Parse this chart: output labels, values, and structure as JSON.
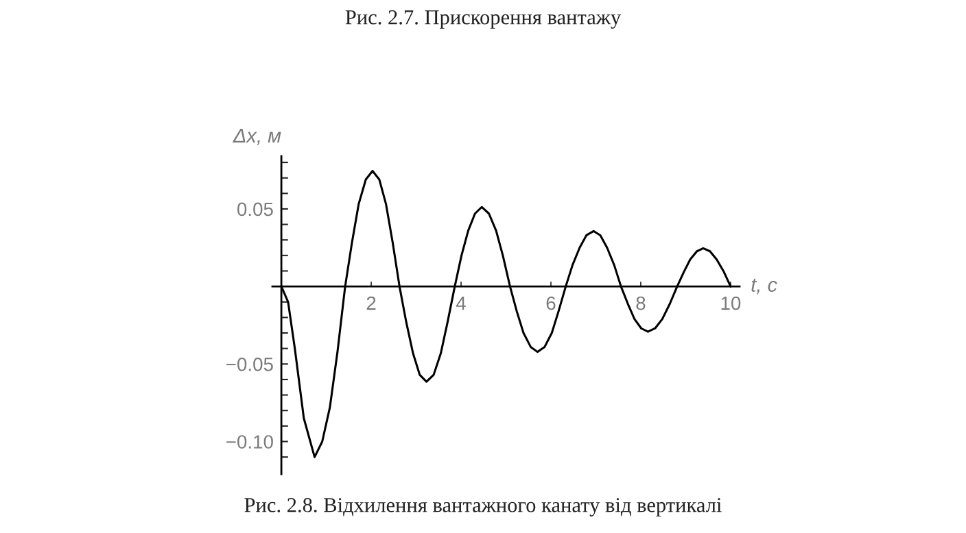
{
  "chart_data": {
    "type": "line",
    "title": "Рис. 2.8. Відхилення вантажного канату від вертикалі",
    "annotations": [
      "Рис. 2.7. Прискорення вантажу"
    ],
    "xlabel": "t, c",
    "ylabel": "Δx, м",
    "xlim": [
      -0.2,
      10.2
    ],
    "ylim": [
      -0.121,
      0.084
    ],
    "xticks": [
      2,
      4,
      6,
      8,
      10
    ],
    "yticks": [
      {
        "value": 0.08,
        "label": null
      },
      {
        "value": 0.07,
        "label": null
      },
      {
        "value": 0.06,
        "label": null
      },
      0.05,
      {
        "value": 0.04,
        "label": null
      },
      {
        "value": 0.03,
        "label": null
      },
      {
        "value": 0.02,
        "label": null
      },
      {
        "value": 0.01,
        "label": null
      },
      {
        "value": -0.01,
        "label": null
      },
      {
        "value": -0.02,
        "label": null
      },
      {
        "value": -0.03,
        "label": null
      },
      {
        "value": -0.04,
        "label": null
      },
      {
        "value": -0.05,
        "label": "−0.05"
      },
      {
        "value": -0.06,
        "label": null
      },
      {
        "value": -0.07,
        "label": null
      },
      {
        "value": -0.08,
        "label": null
      },
      {
        "value": -0.09,
        "label": null
      },
      {
        "value": -0.1,
        "label": "−0.10"
      },
      {
        "value": -0.11,
        "label": null
      }
    ],
    "series": [
      {
        "color": "#000000",
        "x": [
          0,
          0.15,
          0.3,
          0.5,
          0.74,
          0.91,
          1.08,
          1.25,
          1.42,
          1.57,
          1.72,
          1.88,
          2.03,
          2.18,
          2.33,
          2.48,
          2.63,
          2.78,
          2.93,
          3.08,
          3.23,
          3.39,
          3.55,
          3.7,
          3.86,
          4.01,
          4.16,
          4.31,
          4.46,
          4.62,
          4.78,
          4.93,
          5.09,
          5.24,
          5.39,
          5.55,
          5.7,
          5.86,
          6.02,
          6.17,
          6.33,
          6.48,
          6.64,
          6.79,
          6.95,
          7.1,
          7.25,
          7.41,
          7.56,
          7.71,
          7.86,
          8.01,
          8.16,
          8.32,
          8.48,
          8.65,
          8.81,
          8.96,
          9.1,
          9.25,
          9.39,
          9.54,
          9.69,
          9.85,
          10
        ],
        "values": [
          0,
          -0.01,
          -0.04,
          -0.085,
          -0.11,
          -0.1,
          -0.078,
          -0.042,
          0,
          0.028,
          0.053,
          0.069,
          0.0745,
          0.069,
          0.053,
          0.028,
          0,
          -0.023,
          -0.043,
          -0.057,
          -0.0614,
          -0.057,
          -0.043,
          -0.023,
          0,
          0.02,
          0.036,
          0.047,
          0.0512,
          0.047,
          0.036,
          0.02,
          0,
          -0.016,
          -0.03,
          -0.039,
          -0.0422,
          -0.039,
          -0.03,
          -0.016,
          0,
          0.0137,
          0.025,
          0.033,
          0.0357,
          0.033,
          0.025,
          0.0137,
          0,
          -0.011,
          -0.021,
          -0.027,
          -0.0292,
          -0.027,
          -0.021,
          -0.011,
          0,
          0.0094,
          0.0174,
          0.0227,
          0.0246,
          0.0227,
          0.0174,
          0.0094,
          0
        ]
      }
    ]
  }
}
